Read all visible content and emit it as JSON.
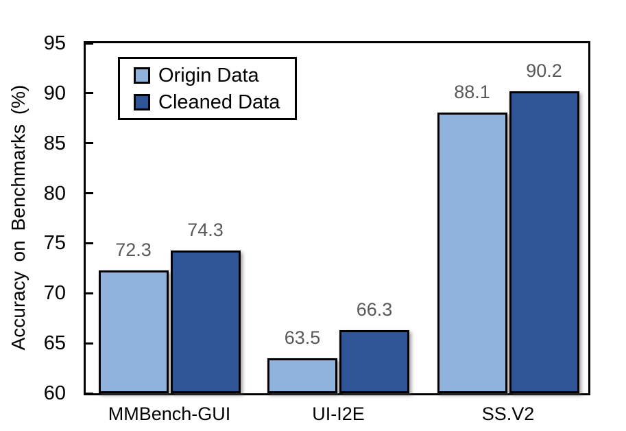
{
  "figure": {
    "background": "#ffffff"
  },
  "chart_data": {
    "type": "bar",
    "title": "",
    "xlabel": "",
    "ylabel": "Accuracy on Benchmarks (%)",
    "ylim": [
      60,
      95
    ],
    "yticks": [
      "95",
      "90",
      "85",
      "80",
      "75",
      "70",
      "65",
      "60"
    ],
    "ytick_values": [
      95,
      90,
      85,
      80,
      75,
      70,
      65,
      60
    ],
    "grid": false,
    "legend_position": "top-left-inside",
    "categories": [
      "MMBench-GUI",
      "UI-I2E",
      "SS.V2"
    ],
    "series": [
      {
        "name": "Origin Data",
        "color": "#8FB3DC",
        "values": [
          72.3,
          63.5,
          88.1
        ],
        "labels": [
          "72.3",
          "63.5",
          "88.1"
        ]
      },
      {
        "name": "Cleaned Data",
        "color": "#2F5597",
        "values": [
          74.3,
          66.3,
          90.2
        ],
        "labels": [
          "74.3",
          "66.3",
          "90.2"
        ]
      }
    ],
    "colors": {
      "bar_border": "#000000",
      "axis": "#000000",
      "tick_label": "#000000",
      "value_label": "#595959",
      "legend_border": "#000000"
    }
  }
}
